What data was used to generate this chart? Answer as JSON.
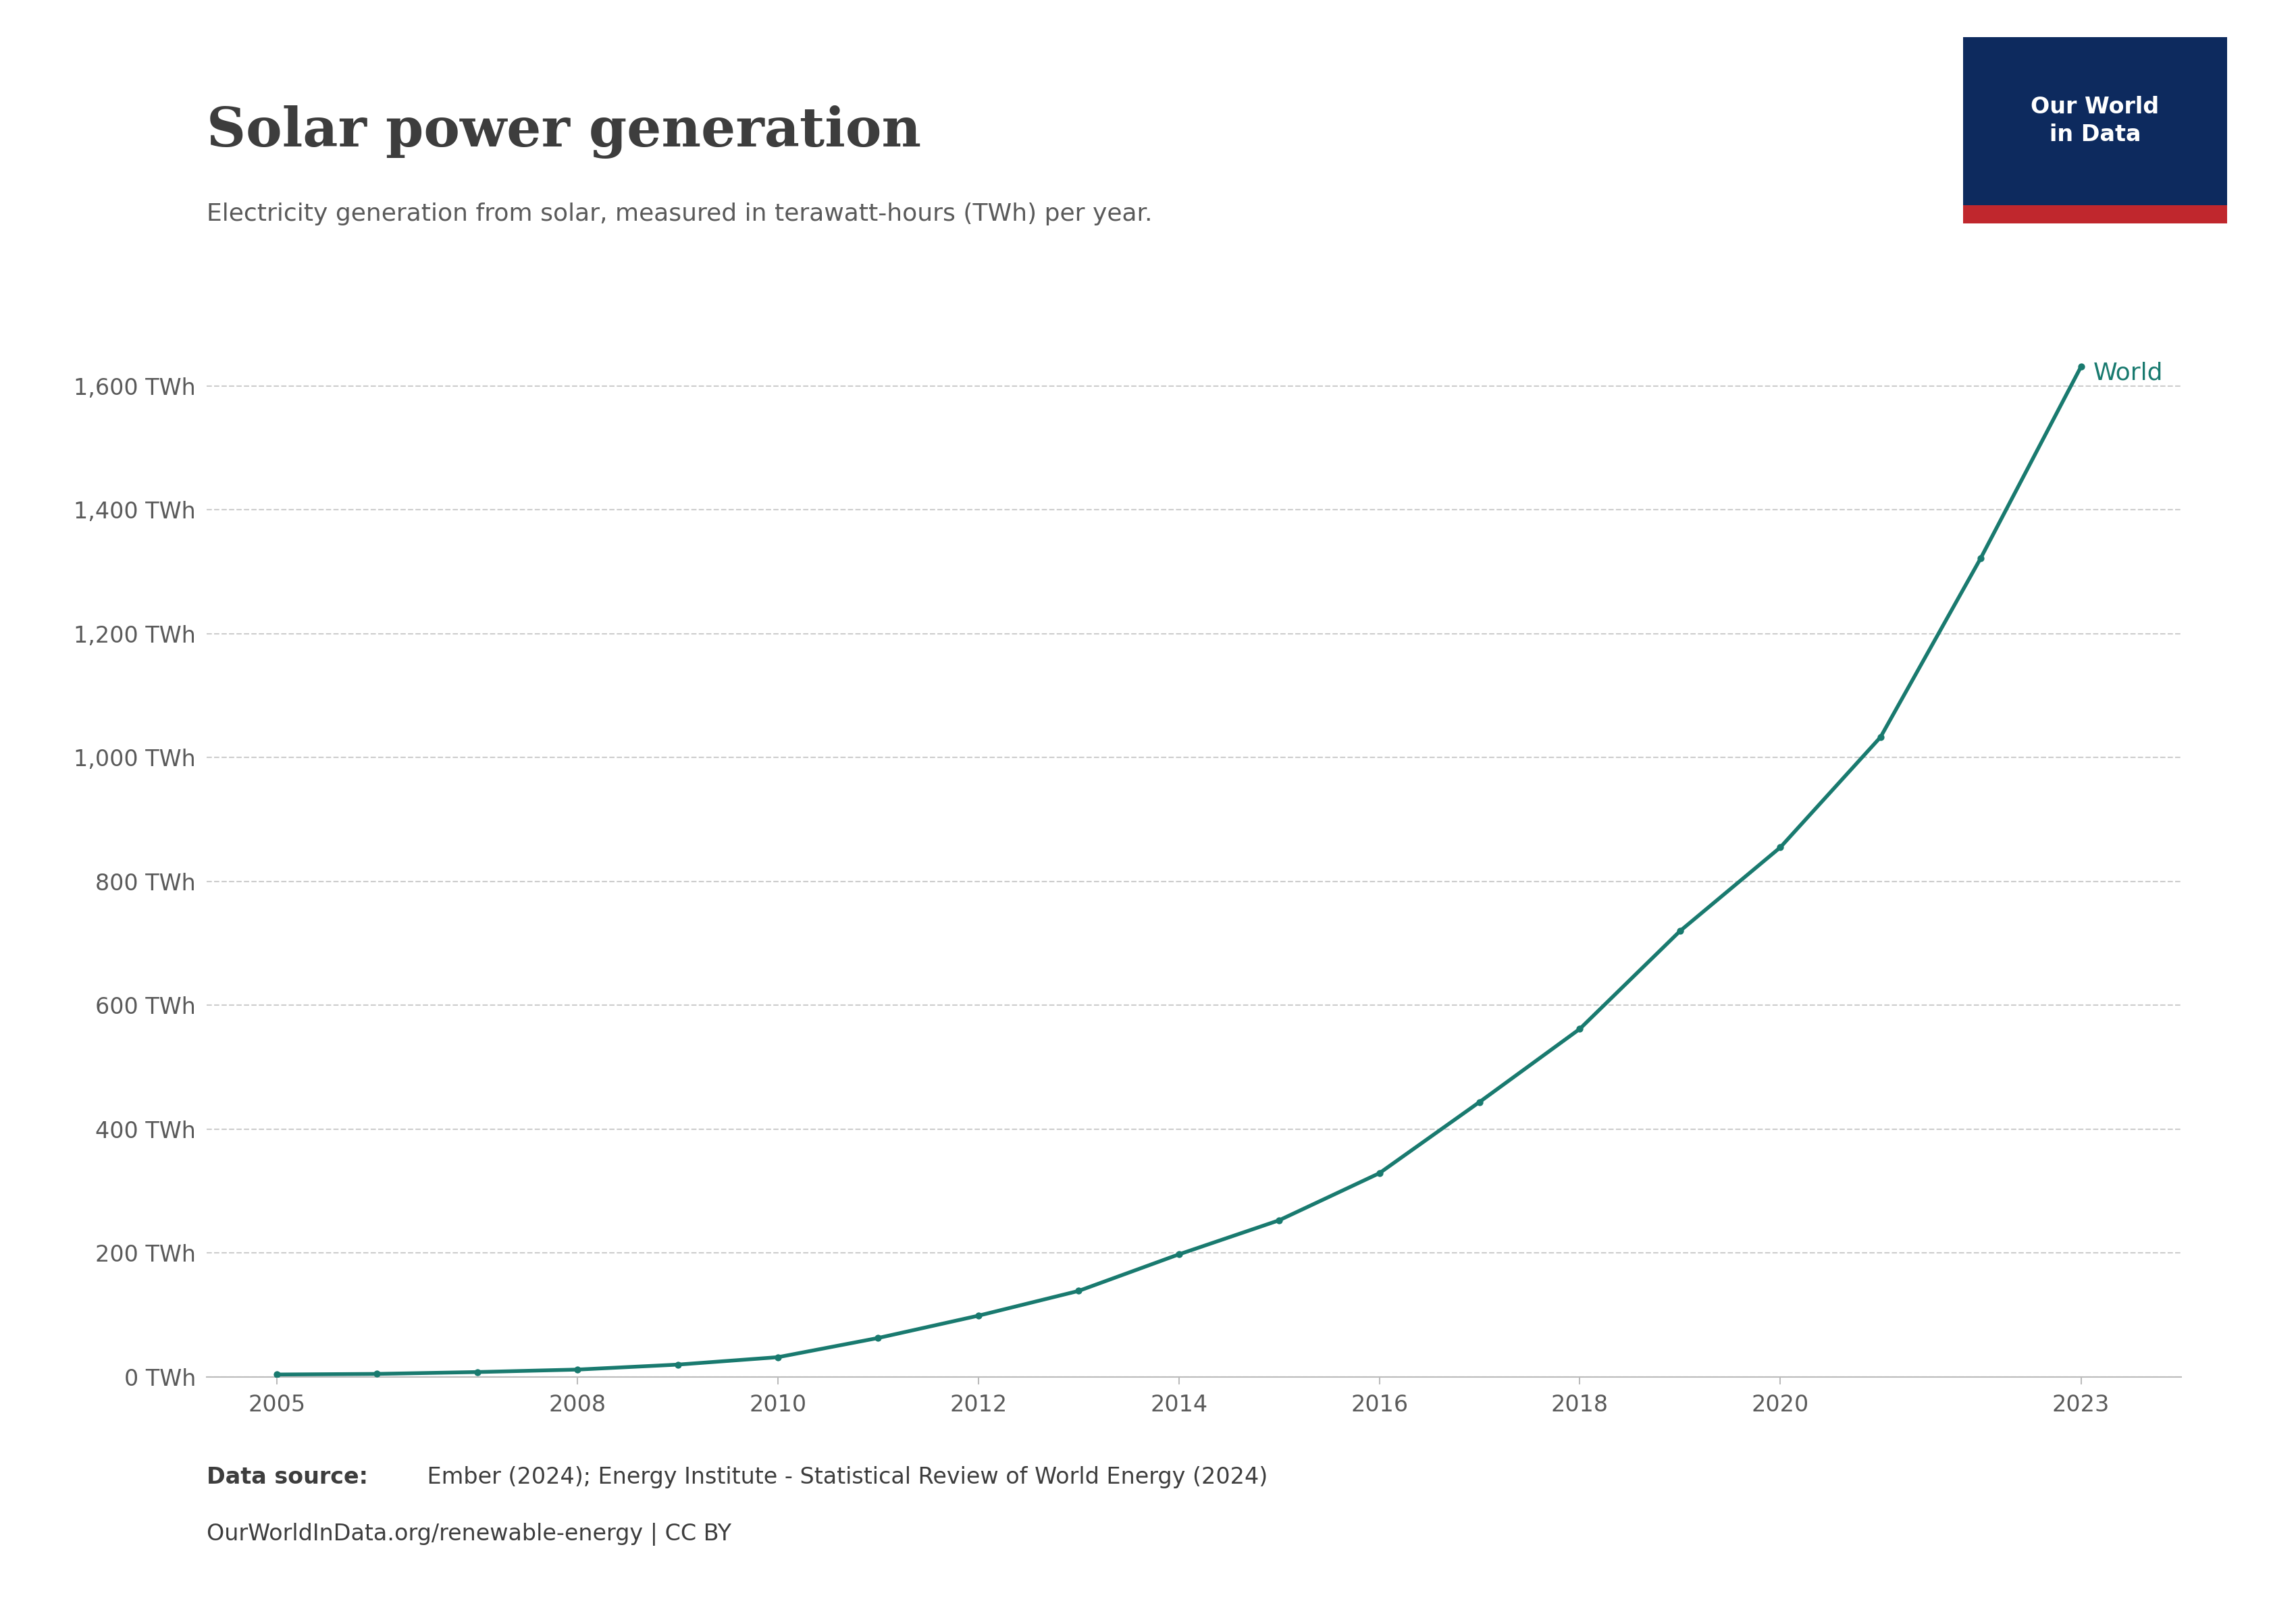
{
  "title": "Solar power generation",
  "subtitle": "Electricity generation from solar, measured in terawatt-hours (TWh) per year.",
  "years": [
    2005,
    2006,
    2007,
    2008,
    2009,
    2010,
    2011,
    2012,
    2013,
    2014,
    2015,
    2016,
    2017,
    2018,
    2019,
    2020,
    2021,
    2022,
    2023
  ],
  "values": [
    4,
    5,
    8,
    12,
    20,
    32,
    63,
    99,
    139,
    198,
    253,
    329,
    444,
    562,
    720,
    855,
    1033,
    1322,
    1631
  ],
  "line_color": "#197A6F",
  "marker_color": "#197A6F",
  "background_color": "#ffffff",
  "title_color": "#3d3d3d",
  "subtitle_color": "#5a5a5a",
  "tick_color": "#5a5a5a",
  "grid_color": "#c8c8c8",
  "label_color": "#197A6F",
  "ylim": [
    0,
    1700
  ],
  "yticks": [
    0,
    200,
    400,
    600,
    800,
    1000,
    1200,
    1400,
    1600
  ],
  "ytick_labels": [
    "0 TWh",
    "200 TWh",
    "400 TWh",
    "600 TWh",
    "800 TWh",
    "1,000 TWh",
    "1,200 TWh",
    "1,400 TWh",
    "1,600 TWh"
  ],
  "xticks": [
    2005,
    2008,
    2010,
    2012,
    2014,
    2016,
    2018,
    2020,
    2023
  ],
  "xlim": [
    2004.3,
    2024.0
  ],
  "series_label": "World",
  "footer_bold": "Data source:",
  "footer_normal": " Ember (2024); Energy Institute - Statistical Review of World Energy (2024)",
  "footer_url": "OurWorldInData.org/renewable-energy | CC BY",
  "owid_box_color": "#0d2a5e",
  "owid_bar_color": "#c0272d",
  "owid_text": "Our World\nin Data"
}
